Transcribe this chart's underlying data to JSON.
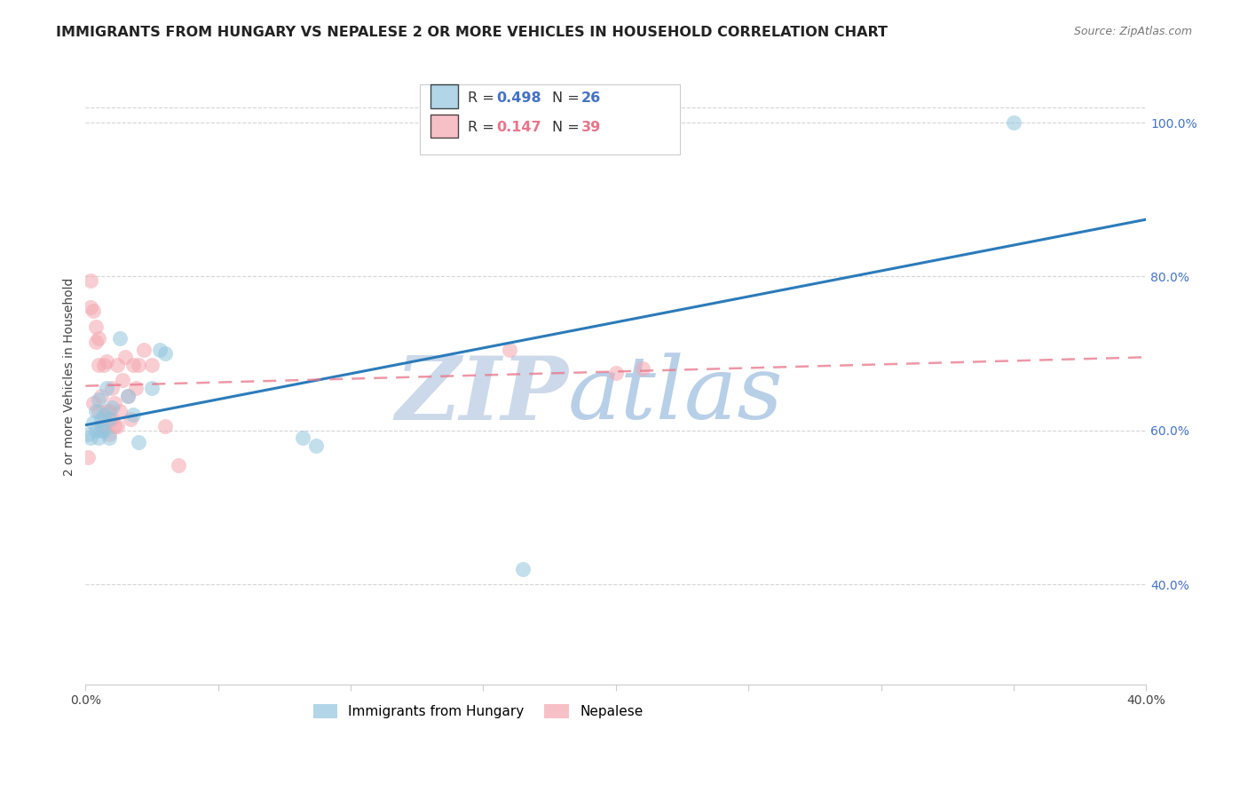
{
  "title": "IMMIGRANTS FROM HUNGARY VS NEPALESE 2 OR MORE VEHICLES IN HOUSEHOLD CORRELATION CHART",
  "source": "Source: ZipAtlas.com",
  "ylabel": "2 or more Vehicles in Household",
  "xlim": [
    0.0,
    0.4
  ],
  "ylim": [
    0.27,
    1.07
  ],
  "right_yticks": [
    0.4,
    0.6,
    0.8,
    1.0
  ],
  "right_yticklabels": [
    "40.0%",
    "60.0%",
    "80.0%",
    "100.0%"
  ],
  "xticks": [
    0.0,
    0.05,
    0.1,
    0.15,
    0.2,
    0.25,
    0.3,
    0.35,
    0.4
  ],
  "xticklabels": [
    "0.0%",
    "",
    "",
    "",
    "",
    "",
    "",
    "",
    "40.0%"
  ],
  "legend_hungary_r": "0.498",
  "legend_hungary_n": "26",
  "legend_nepalese_r": "0.147",
  "legend_nepalese_n": "39",
  "hungary_color": "#92c5de",
  "nepalese_color": "#f4a6b0",
  "hungary_line_color": "#2b7bba",
  "nepalese_line_color": "#e8758a",
  "background_color": "#ffffff",
  "grid_color": "#d5d5d5",
  "hungary_x": [
    0.001,
    0.002,
    0.003,
    0.004,
    0.004,
    0.005,
    0.005,
    0.006,
    0.006,
    0.007,
    0.007,
    0.008,
    0.009,
    0.009,
    0.01,
    0.013,
    0.016,
    0.018,
    0.02,
    0.025,
    0.028,
    0.03,
    0.082,
    0.087,
    0.165,
    0.35
  ],
  "hungary_y": [
    0.595,
    0.59,
    0.61,
    0.6,
    0.625,
    0.59,
    0.64,
    0.6,
    0.615,
    0.62,
    0.6,
    0.655,
    0.615,
    0.59,
    0.63,
    0.72,
    0.645,
    0.62,
    0.585,
    0.655,
    0.705,
    0.7,
    0.59,
    0.58,
    0.42,
    1.0
  ],
  "nepalese_x": [
    0.001,
    0.002,
    0.002,
    0.003,
    0.003,
    0.004,
    0.004,
    0.005,
    0.005,
    0.005,
    0.006,
    0.006,
    0.007,
    0.007,
    0.008,
    0.008,
    0.009,
    0.009,
    0.01,
    0.01,
    0.011,
    0.011,
    0.012,
    0.012,
    0.013,
    0.014,
    0.015,
    0.016,
    0.017,
    0.018,
    0.019,
    0.02,
    0.022,
    0.025,
    0.03,
    0.035,
    0.16,
    0.2,
    0.21
  ],
  "nepalese_y": [
    0.565,
    0.76,
    0.795,
    0.635,
    0.755,
    0.715,
    0.735,
    0.625,
    0.685,
    0.72,
    0.605,
    0.645,
    0.605,
    0.685,
    0.625,
    0.69,
    0.595,
    0.625,
    0.615,
    0.655,
    0.605,
    0.635,
    0.685,
    0.605,
    0.625,
    0.665,
    0.695,
    0.645,
    0.615,
    0.685,
    0.655,
    0.685,
    0.705,
    0.685,
    0.605,
    0.555,
    0.705,
    0.675,
    0.68
  ]
}
